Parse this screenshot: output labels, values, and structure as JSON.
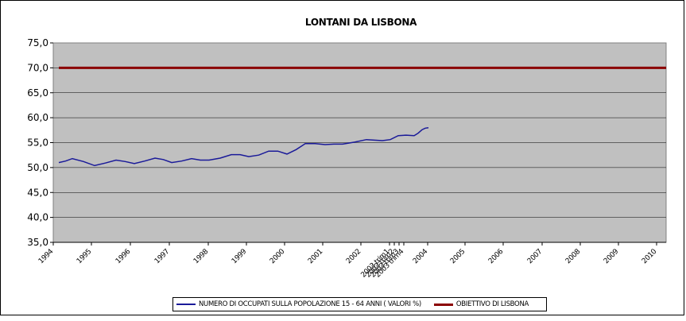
{
  "chart_data": {
    "type": "line",
    "title": "LONTANI DA LISBONA",
    "xlabel": "",
    "ylabel": "",
    "ylim": [
      35,
      75
    ],
    "y_ticks": [
      "35,0",
      "40,0",
      "45,0",
      "50,0",
      "55,0",
      "60,0",
      "65,0",
      "70,0",
      "75,0"
    ],
    "x_tick_labels": [
      "1994",
      "1995",
      "1996",
      "1997",
      "1998",
      "1999",
      "2000",
      "2001",
      "2002",
      "2003 trim1",
      "2003 trim2",
      "2003 trim3",
      "2003 trim4",
      "2004",
      "2005",
      "2006",
      "2007",
      "2008",
      "2009",
      "2010"
    ],
    "grid": true,
    "legend_position": "bottom",
    "series": [
      {
        "name": "NUMERO DI OCCUPATI SULLA POPOLAZIONE 15 - 64 ANNI ( VALORI %)",
        "color": "#1a1a99",
        "x": [
          0,
          0.5,
          1,
          1.5,
          2,
          2.5,
          3,
          3.5,
          4,
          4.5,
          5,
          5.5,
          6,
          6.5,
          7,
          7.5,
          8,
          8.5,
          9,
          9.5,
          10,
          10.5,
          11,
          11.5,
          12,
          12.5,
          13,
          13.5,
          14,
          14.5,
          15,
          15.5,
          16,
          16.5,
          17,
          17.5,
          18,
          18.5,
          19
        ],
        "values": [
          51.0,
          51.3,
          51.8,
          51.2,
          50.4,
          50.9,
          51.5,
          51.2,
          50.8,
          51.3,
          51.9,
          51.6,
          51.0,
          51.3,
          51.8,
          51.5,
          51.5,
          51.9,
          52.6,
          52.6,
          52.2,
          52.5,
          53.3,
          53.3,
          52.7,
          53.6,
          54.8,
          54.8,
          54.6,
          54.7,
          54.7,
          55.1,
          55.6,
          55.5,
          55.4,
          55.6,
          56.4,
          56.5,
          56.4
        ]
      },
      {
        "name": "OBIETTIVO DI LISBONA",
        "color": "#8b0000",
        "x": [
          0,
          19
        ],
        "values": [
          70.0,
          70.0
        ]
      }
    ],
    "series_points_extra": {
      "x_cont": [
        19.5,
        20,
        20.5,
        21
      ],
      "values_cont": [
        56.9,
        57.6,
        57.9,
        58.0
      ]
    }
  }
}
